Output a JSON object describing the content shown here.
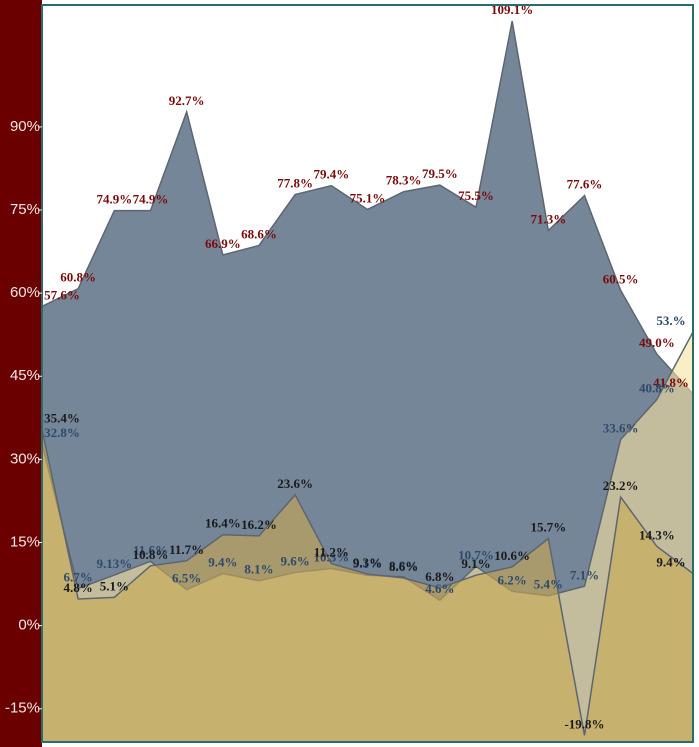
{
  "chart_data": {
    "type": "area",
    "categories": null,
    "ylim": [
      -21,
      112
    ],
    "yticks": [
      {
        "value": -15,
        "label": "-15%"
      },
      {
        "value": 0,
        "label": "0%"
      },
      {
        "value": 15,
        "label": "15%"
      },
      {
        "value": 30,
        "label": "30%"
      },
      {
        "value": 45,
        "label": "45%"
      },
      {
        "value": 60,
        "label": "60%"
      },
      {
        "value": 75,
        "label": "75%"
      },
      {
        "value": 90,
        "label": "90%"
      }
    ],
    "series": [
      {
        "color": "#6f8093",
        "label_color": "#7a0a0a",
        "values": [
          57.6,
          60.8,
          74.9,
          74.9,
          92.7,
          66.9,
          68.6,
          77.8,
          79.4,
          75.1,
          78.3,
          79.5,
          75.5,
          109.1,
          71.3,
          77.6,
          60.5,
          49.0,
          41.8
        ],
        "value_labels": [
          "57.6%",
          "60.8%",
          "74.9%",
          "74.9%",
          "92.7%",
          "66.9%",
          "68.6%",
          "77.8%",
          "79.4%",
          "75.1%",
          "78.3%",
          "79.5%",
          "75.5%",
          "109.1%",
          "71.3%",
          "77.6%",
          "60.5%",
          "49.0%",
          "41.8%"
        ]
      },
      {
        "color": "#f7e3a1",
        "label_color": "#2e4a6b",
        "values": [
          32.8,
          6.7,
          9.13,
          11.6,
          6.5,
          9.4,
          8.1,
          9.6,
          10.3,
          9.1,
          8.8,
          4.6,
          10.7,
          6.2,
          5.4,
          7.1,
          33.6,
          40.8,
          53
        ],
        "value_labels": [
          "32.8%",
          "6.7%",
          "9.13%",
          "11.6%",
          "6.5%",
          "9.4%",
          "8.1%",
          "9.6%",
          "10.3%",
          "9.1%",
          "8.8%",
          "4.6%",
          "10.7%",
          "6.2%",
          "5.4%",
          "7.1%",
          "33.6%",
          "40.8%",
          "53.%"
        ]
      },
      {
        "color": "#c9a94f",
        "label_color": "#1a1a1a",
        "values": [
          35.4,
          4.8,
          5.1,
          10.8,
          11.7,
          16.4,
          16.2,
          23.6,
          11.2,
          9.3,
          8.6,
          6.8,
          9.1,
          10.6,
          15.7,
          -19.8,
          23.2,
          14.3,
          9.4
        ],
        "value_labels": [
          "35.4%",
          "4.8%",
          "5.1%",
          "10.8%",
          "11.7%",
          "16.4%",
          "16.2%",
          "23.6%",
          "11.2%",
          "9.3%",
          "8.6%",
          "6.8%",
          "9.1%",
          "10.6%",
          "15.7%",
          "-19.8%",
          "23.2%",
          "14.3%",
          "9.4%"
        ]
      }
    ]
  }
}
